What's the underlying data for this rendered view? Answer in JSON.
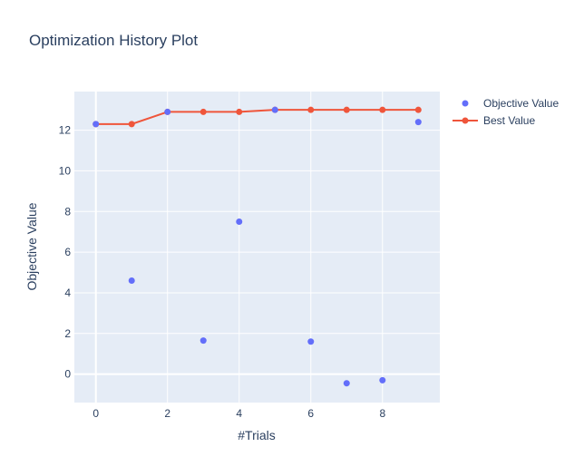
{
  "chart_data": {
    "type": "scatter",
    "title": "Optimization History Plot",
    "xlabel": "#Trials",
    "ylabel": "Objective Value",
    "xlim": [
      -0.6,
      9.6
    ],
    "ylim": [
      -1.4,
      13.9
    ],
    "x_ticks": [
      0,
      2,
      4,
      6,
      8
    ],
    "y_ticks": [
      0,
      2,
      4,
      6,
      8,
      10,
      12
    ],
    "grid": true,
    "legend_position": "top-right",
    "series": [
      {
        "name": "Objective Value",
        "mode": "markers",
        "color": "#636efa",
        "x": [
          0,
          1,
          2,
          3,
          4,
          5,
          6,
          7,
          8,
          9
        ],
        "y": [
          12.3,
          4.6,
          12.9,
          1.65,
          7.5,
          13.0,
          1.6,
          -0.45,
          -0.3,
          12.4
        ]
      },
      {
        "name": "Best Value",
        "mode": "lines+markers",
        "color": "#ef553b",
        "x": [
          0,
          1,
          2,
          3,
          4,
          5,
          6,
          7,
          8,
          9
        ],
        "y": [
          12.3,
          12.3,
          12.9,
          12.9,
          12.9,
          13.0,
          13.0,
          13.0,
          13.0,
          13.0
        ]
      }
    ]
  }
}
